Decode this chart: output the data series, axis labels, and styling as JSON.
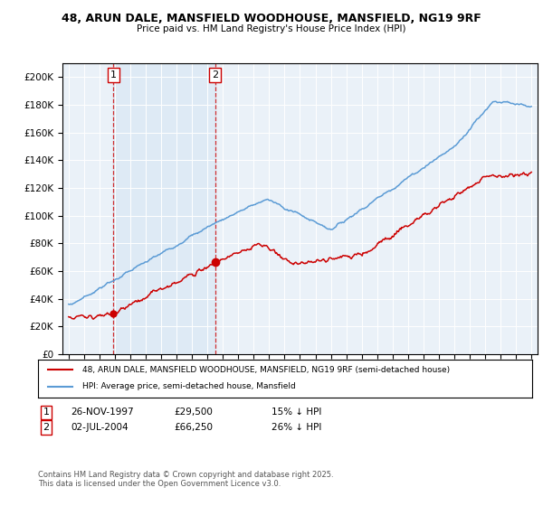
{
  "title1": "48, ARUN DALE, MANSFIELD WOODHOUSE, MANSFIELD, NG19 9RF",
  "title2": "Price paid vs. HM Land Registry's House Price Index (HPI)",
  "legend1": "48, ARUN DALE, MANSFIELD WOODHOUSE, MANSFIELD, NG19 9RF (semi-detached house)",
  "legend2": "HPI: Average price, semi-detached house, Mansfield",
  "footnote": "Contains HM Land Registry data © Crown copyright and database right 2025.\nThis data is licensed under the Open Government Licence v3.0.",
  "transaction1": {
    "label": "1",
    "date": "26-NOV-1997",
    "price": 29500,
    "note": "15% ↓ HPI",
    "x_year": 1997.9
  },
  "transaction2": {
    "label": "2",
    "date": "02-JUL-2004",
    "price": 66250,
    "note": "26% ↓ HPI",
    "x_year": 2004.5
  },
  "hpi_color": "#5b9bd5",
  "price_color": "#cc0000",
  "shade_color": "#dce9f5",
  "plot_bg": "#eaf1f8",
  "ylim": [
    0,
    210000
  ],
  "yticks": [
    0,
    20000,
    40000,
    60000,
    80000,
    100000,
    120000,
    140000,
    160000,
    180000,
    200000
  ],
  "xlim_left": 1994.6,
  "xlim_right": 2025.4
}
